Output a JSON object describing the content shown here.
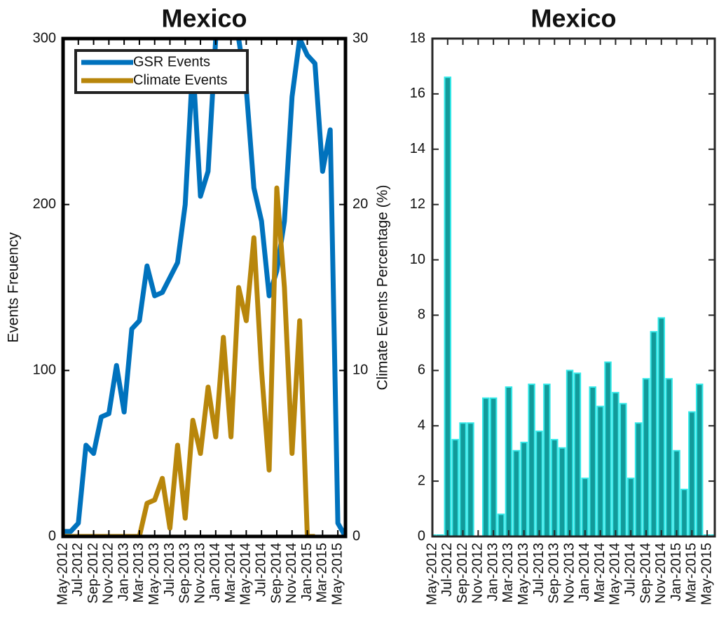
{
  "chart_data": [
    {
      "type": "line",
      "title": "Mexico",
      "ylabel": "Events Freuency",
      "categories": [
        "May-2012",
        null,
        "Jul-2012",
        null,
        "Sep-2012",
        null,
        "Nov-2012",
        null,
        "Jan-2013",
        null,
        "Mar-2013",
        null,
        "May-2013",
        null,
        "Jul-2013",
        null,
        "Sep-2013",
        null,
        "Nov-2013",
        null,
        "Jan-2014",
        null,
        "Mar-2014",
        null,
        "May-2014",
        null,
        "Jul-2014",
        null,
        "Sep-2014",
        null,
        "Nov-2014",
        null,
        "Jan-2015",
        null,
        "Mar-2015",
        null,
        "May-2015",
        null
      ],
      "series": [
        {
          "name": "GSR Events",
          "color": "#0072bd",
          "values": [
            3,
            3,
            8,
            55,
            50,
            72,
            74,
            103,
            75,
            125,
            130,
            163,
            145,
            147,
            156,
            165,
            200,
            285,
            205,
            220,
            300,
            320,
            320,
            300,
            270,
            210,
            190,
            145,
            160,
            190,
            265,
            300,
            290,
            285,
            220,
            245,
            8,
            0
          ]
        },
        {
          "name": "Climate Events",
          "color": "#b8860b",
          "axis": "y2",
          "values": [
            0,
            0,
            0,
            0,
            0,
            0,
            0,
            0,
            0,
            0,
            0,
            2,
            2.2,
            3.5,
            0.5,
            5.5,
            1.1,
            7,
            5,
            9,
            6,
            12,
            6,
            15,
            13,
            18,
            10,
            4,
            21,
            15,
            5,
            13,
            0,
            0,
            null,
            null,
            null,
            null
          ]
        }
      ],
      "ylim": [
        0,
        300
      ],
      "yticks": [
        0,
        100,
        200,
        300
      ],
      "y2lim": [
        0,
        30
      ],
      "y2ticks": [
        0,
        10,
        20,
        30
      ],
      "legend": "top-left"
    },
    {
      "type": "bar",
      "title": "Mexico",
      "ylabel": "Climate Events Percentage (%)",
      "categories": [
        "May-2012",
        null,
        "Jul-2012",
        null,
        "Sep-2012",
        null,
        "Nov-2012",
        null,
        "Jan-2013",
        null,
        "Mar-2013",
        null,
        "May-2013",
        null,
        "Jul-2013",
        null,
        "Sep-2013",
        null,
        "Nov-2013",
        null,
        "Jan-2014",
        null,
        "Mar-2014",
        null,
        "May-2014",
        null,
        "Jul-2014",
        null,
        "Sep-2014",
        null,
        "Nov-2014",
        null,
        "Jan-2015",
        null,
        "Mar-2015",
        null,
        "May-2015",
        null
      ],
      "values": [
        0.05,
        0.05,
        16.6,
        3.5,
        4.1,
        4.1,
        0,
        5.0,
        5.0,
        0.8,
        5.4,
        3.1,
        3.4,
        5.5,
        3.8,
        5.5,
        3.5,
        3.2,
        6.0,
        5.9,
        2.1,
        5.4,
        4.7,
        6.3,
        5.2,
        4.8,
        2.1,
        4.1,
        5.7,
        7.4,
        7.9,
        5.7,
        3.1,
        1.7,
        4.5,
        5.5,
        0.05,
        0.05
      ],
      "color": "#129a9a",
      "ylim": [
        0,
        18
      ],
      "yticks": [
        0,
        2,
        4,
        6,
        8,
        10,
        12,
        14,
        16,
        18
      ]
    }
  ]
}
